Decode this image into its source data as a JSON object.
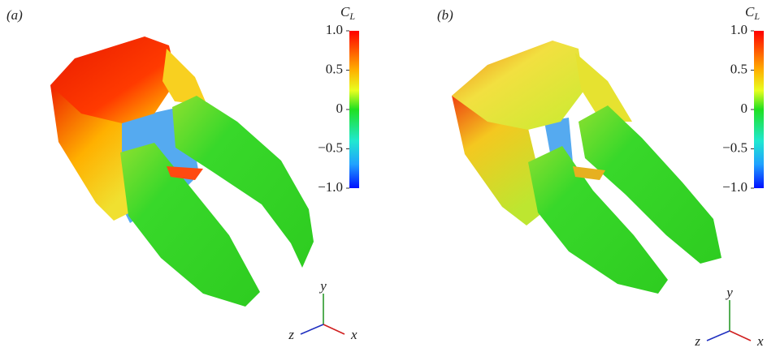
{
  "panels": [
    {
      "label": "(a)",
      "colorbar": {
        "title": "C",
        "subscript": "L",
        "ticks": [
          {
            "value": 1,
            "label": "1.0"
          },
          0.5,
          0,
          {
            "value": -0.5,
            "label": "−0.5"
          },
          {
            "value": -1,
            "label": "−1.0"
          }
        ]
      },
      "axes": {
        "x": "x",
        "y": "y",
        "z": "z"
      }
    },
    {
      "label": "(b)",
      "colorbar": {
        "title": "C",
        "subscript": "L",
        "ticks": [
          {
            "value": 1,
            "label": "1.0"
          },
          0.5,
          0,
          {
            "value": -0.5,
            "label": "−0.5"
          },
          {
            "value": -1,
            "label": "−1.0"
          }
        ]
      },
      "axes": {
        "x": "x",
        "y": "y",
        "z": "z"
      }
    }
  ]
}
